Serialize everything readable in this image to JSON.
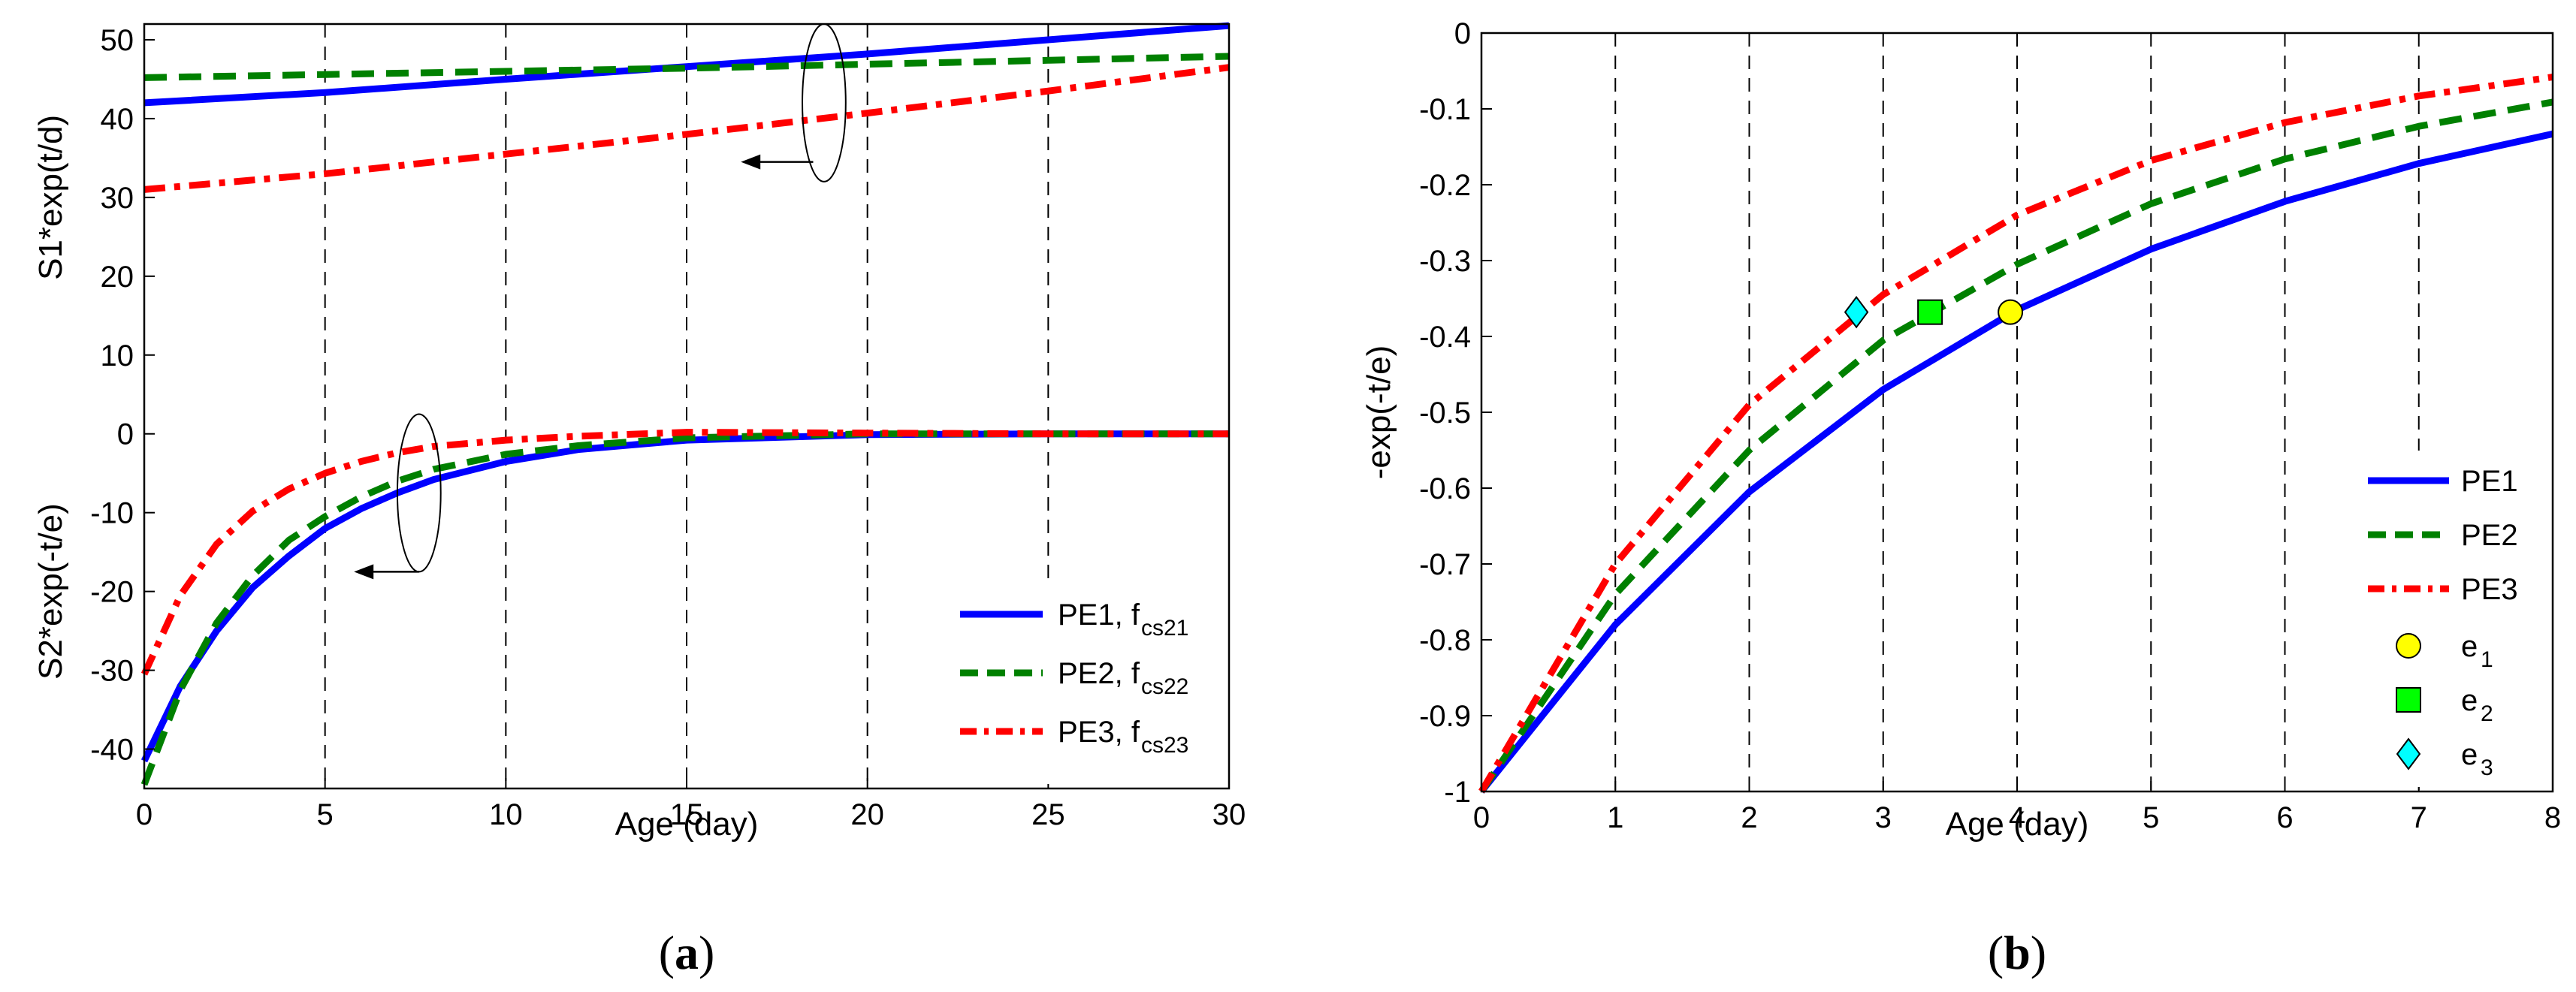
{
  "chart_data": [
    {
      "panel": "a",
      "panel_label_open": "(",
      "panel_label_letter": "a",
      "panel_label_close": ")",
      "type": "line",
      "xlabel": "Age (day)",
      "ylabel_top": "S1*exp(t/d)",
      "ylabel_bottom": "S2*exp(-t/e)",
      "xlim": [
        0,
        30
      ],
      "ylim": [
        -45,
        52
      ],
      "xticks": [
        0,
        5,
        10,
        15,
        20,
        25,
        30
      ],
      "yticks": [
        -40,
        -30,
        -20,
        -10,
        0,
        10,
        20,
        30,
        40,
        50
      ],
      "vgrid": [
        5,
        10,
        15,
        20,
        25
      ],
      "legend_position": "bottom-right",
      "series": [
        {
          "name": "PE1, f",
          "sub": "cs21",
          "color": "#0000ff",
          "style": "solid",
          "group": "S1",
          "x": [
            0,
            5,
            10,
            15,
            20,
            25,
            30
          ],
          "values": [
            42.0,
            43.3,
            45.0,
            46.6,
            48.2,
            50.0,
            51.8
          ]
        },
        {
          "name": "PE2, f",
          "sub": "cs22",
          "color": "#008000",
          "style": "dash",
          "group": "S1",
          "x": [
            0,
            5,
            10,
            15,
            20,
            25,
            30
          ],
          "values": [
            45.2,
            45.6,
            46.0,
            46.4,
            46.9,
            47.4,
            47.9
          ]
        },
        {
          "name": "PE3, f",
          "sub": "cs23",
          "color": "#ff0000",
          "style": "dashdot",
          "group": "S1",
          "x": [
            0,
            5,
            10,
            15,
            20,
            25,
            30
          ],
          "values": [
            31.0,
            33.0,
            35.5,
            38.0,
            40.7,
            43.5,
            46.5
          ]
        },
        {
          "name": "PE1, f",
          "sub": "cs21",
          "color": "#0000ff",
          "style": "solid",
          "group": "S2",
          "x": [
            0,
            1,
            2,
            3,
            4,
            5,
            6,
            7,
            8,
            10,
            12,
            15,
            20,
            25,
            30
          ],
          "values": [
            -41.5,
            -32.0,
            -25.0,
            -19.5,
            -15.5,
            -12.0,
            -9.5,
            -7.5,
            -5.8,
            -3.5,
            -2.0,
            -0.8,
            -0.1,
            0,
            0
          ]
        },
        {
          "name": "PE2, f",
          "sub": "cs22",
          "color": "#008000",
          "style": "dash",
          "group": "S2",
          "x": [
            0,
            1,
            2,
            3,
            4,
            5,
            6,
            7,
            8,
            10,
            12,
            15,
            20,
            25,
            30
          ],
          "values": [
            -44.5,
            -32.5,
            -24.0,
            -18.0,
            -13.5,
            -10.5,
            -8.0,
            -6.0,
            -4.5,
            -2.6,
            -1.5,
            -0.5,
            0,
            0,
            0
          ]
        },
        {
          "name": "PE3, f",
          "sub": "cs23",
          "color": "#ff0000",
          "style": "dashdot",
          "group": "S2",
          "x": [
            0,
            1,
            2,
            3,
            4,
            5,
            6,
            7,
            8,
            10,
            12,
            15,
            20,
            25,
            30
          ],
          "values": [
            -30.5,
            -20.5,
            -14.0,
            -9.8,
            -7.0,
            -5.0,
            -3.5,
            -2.4,
            -1.6,
            -0.8,
            -0.3,
            0.2,
            0.1,
            0,
            0
          ]
        }
      ],
      "annotations": [
        {
          "type": "ellipse-arrow",
          "x": 18.8,
          "y": 42,
          "rx_data": 0.6,
          "ry_data": 10,
          "arrow_to": [
            16.5,
            34.5
          ],
          "arrow_from": [
            18.5,
            34.5
          ]
        },
        {
          "type": "ellipse-arrow",
          "x": 7.6,
          "y": -7.5,
          "rx_data": 0.6,
          "ry_data": 10,
          "arrow_to": [
            5.8,
            -17.5
          ],
          "arrow_from": [
            7.6,
            -17.5
          ]
        }
      ]
    },
    {
      "panel": "b",
      "panel_label_open": "(",
      "panel_label_letter": "b",
      "panel_label_close": ")",
      "type": "line",
      "xlabel": "Age (day)",
      "ylabel": "-exp(-t/e)",
      "xlim": [
        0,
        8
      ],
      "ylim": [
        -1,
        0
      ],
      "xticks": [
        0,
        1,
        2,
        3,
        4,
        5,
        6,
        7,
        8
      ],
      "yticks": [
        -1,
        -0.9,
        -0.8,
        -0.7,
        -0.6,
        -0.5,
        -0.4,
        -0.3,
        -0.2,
        -0.1,
        0
      ],
      "ytick_labels": [
        "-1",
        "-0.9",
        "-0.8",
        "-0.7",
        "-0.6",
        "-0.5",
        "-0.4",
        "-0.3",
        "-0.2",
        "-0.1",
        "0"
      ],
      "vgrid": [
        1,
        2,
        3,
        4,
        5,
        6,
        7
      ],
      "legend_position": "bottom-right",
      "series": [
        {
          "name": "PE1",
          "color": "#0000ff",
          "style": "solid",
          "x": [
            0,
            1,
            2,
            3,
            4,
            5,
            6,
            7,
            8
          ],
          "values": [
            -1.0,
            -0.78,
            -0.605,
            -0.47,
            -0.365,
            -0.285,
            -0.222,
            -0.172,
            -0.133
          ]
        },
        {
          "name": "PE2",
          "color": "#008000",
          "style": "dash",
          "x": [
            0,
            1,
            2,
            3,
            4,
            5,
            6,
            7,
            8
          ],
          "values": [
            -1.0,
            -0.74,
            -0.55,
            -0.405,
            -0.305,
            -0.225,
            -0.166,
            -0.123,
            -0.091
          ]
        },
        {
          "name": "PE3",
          "color": "#ff0000",
          "style": "dashdot",
          "x": [
            0,
            1,
            2,
            3,
            4,
            5,
            6,
            7,
            8
          ],
          "values": [
            -1.0,
            -0.7,
            -0.49,
            -0.345,
            -0.24,
            -0.168,
            -0.118,
            -0.083,
            -0.058
          ]
        }
      ],
      "markers": [
        {
          "name": "e",
          "sub": "1",
          "shape": "circle",
          "color": "#ffff00",
          "x": 3.95,
          "y": -0.368
        },
        {
          "name": "e",
          "sub": "2",
          "shape": "square",
          "color": "#00ff00",
          "x": 3.35,
          "y": -0.368
        },
        {
          "name": "e",
          "sub": "3",
          "shape": "diamond",
          "color": "#00ffff",
          "x": 2.8,
          "y": -0.368
        }
      ]
    }
  ]
}
